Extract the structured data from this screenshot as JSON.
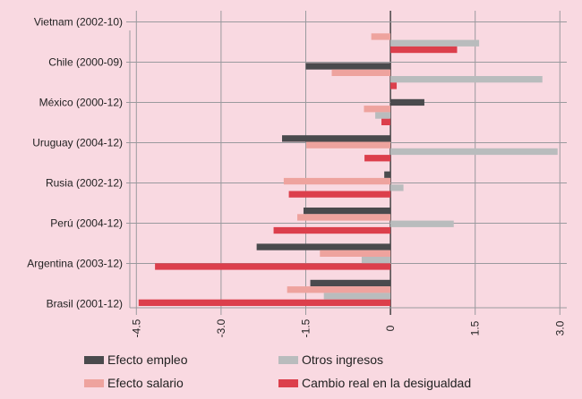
{
  "chart_data": {
    "type": "bar",
    "orientation": "horizontal",
    "categories": [
      "Vietnam (2002-10)",
      "Chile (2000-09)",
      "México (2000-12)",
      "Uruguay (2004-12)",
      "Rusia (2002-12)",
      "Perú (2004-12)",
      "Argentina (2003-12)",
      "Brasil (2001-12)"
    ],
    "series": [
      {
        "name": "Efecto empleo",
        "color": "#4a4a4d",
        "values": [
          0,
          -1.5,
          0.6,
          -1.92,
          -0.11,
          -1.54,
          -2.37,
          -1.42
        ]
      },
      {
        "name": "Efecto salario",
        "color": "#eea39e",
        "values": [
          -0.34,
          -1.04,
          -0.47,
          -1.49,
          -1.89,
          -1.65,
          -1.25,
          -1.83
        ]
      },
      {
        "name": "Otros ingresos",
        "color": "#b9bcbd",
        "values": [
          1.57,
          2.69,
          -0.27,
          2.96,
          0.23,
          1.12,
          -0.51,
          -1.18
        ]
      },
      {
        "name": "Cambio real en la desigualdad",
        "color": "#dc3f4c",
        "values": [
          1.18,
          0.11,
          -0.16,
          -0.46,
          -1.8,
          -2.07,
          -4.17,
          -4.46
        ]
      }
    ],
    "x_ticks": [
      "-4.5",
      "-3.0",
      "-1.5",
      "0",
      "1.5",
      "3.0"
    ],
    "x_tick_values": [
      -4.5,
      -3.0,
      -1.5,
      0,
      1.5,
      3.0
    ],
    "xlim": [
      -4.5,
      3.0
    ],
    "grid": true,
    "legend_position": "bottom",
    "background": "#f9d9e1"
  }
}
